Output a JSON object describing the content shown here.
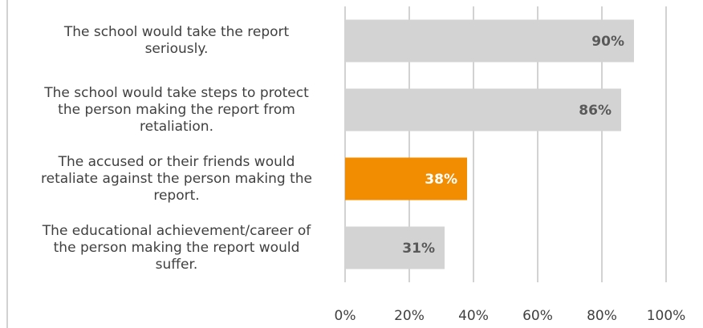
{
  "chart_data": {
    "type": "bar",
    "orientation": "horizontal",
    "title": "",
    "xlabel": "",
    "ylabel": "",
    "categories": [
      "The school would take the report seriously.",
      "The school would take steps to protect the person making the report from retaliation.",
      "The accused or their friends would retaliate against the person making the report.",
      "The educational achievement/career of the person making the report would suffer."
    ],
    "values": [
      90,
      86,
      38,
      31
    ],
    "value_labels": [
      "90%",
      "86%",
      "38%",
      "31%"
    ],
    "highlight_index": 2,
    "xlim": [
      0,
      100
    ],
    "x_ticks": [
      "0%",
      "20%",
      "40%",
      "60%",
      "80%",
      "100%"
    ],
    "grid": "vertical",
    "legend": "none",
    "colors": {
      "bar": "#d3d3d3",
      "highlight": "#f28c00",
      "label_on_bar": "#595959",
      "label_on_highlight": "#ffffff",
      "grid": "#a6a6a6",
      "text": "#404040"
    }
  },
  "category_label_lines": [
    [
      "The school would take the report",
      "seriously."
    ],
    [
      "The school would take steps to protect",
      "the person making the report from",
      "retaliation."
    ],
    [
      "The accused or their friends would",
      "retaliate against the person making the",
      "report."
    ],
    [
      "The educational achievement/career of",
      "the person making the report would",
      "suffer."
    ]
  ]
}
